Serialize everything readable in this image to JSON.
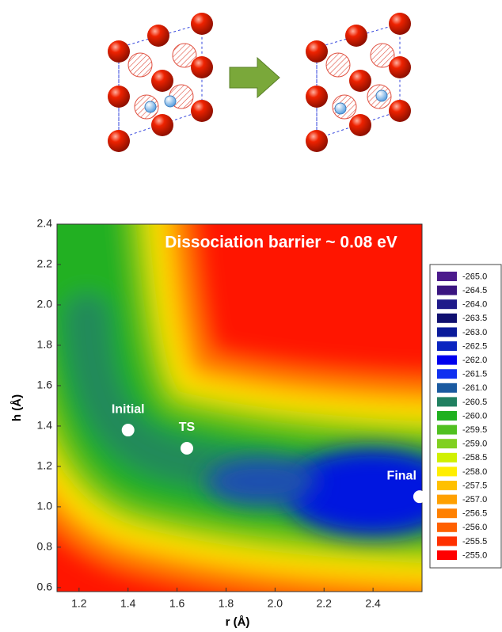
{
  "chart_data": {
    "type": "contour",
    "annotation": "Dissociation barrier ~ 0.08 eV",
    "x_label": "r (Å)",
    "y_label": "h (Å)",
    "xlim": [
      1.11,
      2.6
    ],
    "ylim": [
      0.58,
      2.4
    ],
    "xticks": [
      1.2,
      1.4,
      1.6,
      1.8,
      {
        "value": 2,
        "label": "2.0"
      },
      2.2,
      2.4
    ],
    "yticks": [
      0.6,
      0.8,
      {
        "value": 1,
        "label": "1.0"
      },
      1.2,
      1.4,
      1.6,
      1.8,
      {
        "value": 2,
        "label": "2.0"
      },
      2.2,
      2.4
    ],
    "points": [
      {
        "label": "Initial",
        "x": 1.4,
        "y": 1.38
      },
      {
        "label": "TS",
        "x": 1.64,
        "y": 1.29
      },
      {
        "label": "Final",
        "x": 2.59,
        "y": 1.05
      }
    ],
    "levels": [
      {
        "value": -265,
        "label": "-265.0",
        "color": "#4b1a8c"
      },
      {
        "value": -264.5,
        "label": "-264.5",
        "color": "#3a1580"
      },
      {
        "value": -264,
        "label": "-264.0",
        "color": "#1f1a8a"
      },
      {
        "value": -263.5,
        "label": "-263.5",
        "color": "#101070"
      },
      {
        "value": -263,
        "label": "-263.0",
        "color": "#0a1a9a"
      },
      {
        "value": -262.5,
        "label": "-262.5",
        "color": "#0a24c0"
      },
      {
        "value": -262,
        "label": "-262.0",
        "color": "#0000ee"
      },
      {
        "value": -261.5,
        "label": "-261.5",
        "color": "#1030f0"
      },
      {
        "value": -261,
        "label": "-261.0",
        "color": "#1a5aa0"
      },
      {
        "value": -260.5,
        "label": "-260.5",
        "color": "#208060"
      },
      {
        "value": -260,
        "label": "-260.0",
        "color": "#20b020"
      },
      {
        "value": -259.5,
        "label": "-259.5",
        "color": "#50c020"
      },
      {
        "value": -259,
        "label": "-259.0",
        "color": "#80d020"
      },
      {
        "value": -258.5,
        "label": "-258.5",
        "color": "#d0f000"
      },
      {
        "value": -258,
        "label": "-258.0",
        "color": "#ffee00"
      },
      {
        "value": -257.5,
        "label": "-257.5",
        "color": "#ffc000"
      },
      {
        "value": -257,
        "label": "-257.0",
        "color": "#ffa000"
      },
      {
        "value": -256.5,
        "label": "-256.5",
        "color": "#ff8000"
      },
      {
        "value": -256,
        "label": "-256.0",
        "color": "#ff6000"
      },
      {
        "value": -255.5,
        "label": "-255.5",
        "color": "#ff3000"
      },
      {
        "value": -255,
        "label": "-255.0",
        "color": "#ff0000"
      }
    ]
  }
}
